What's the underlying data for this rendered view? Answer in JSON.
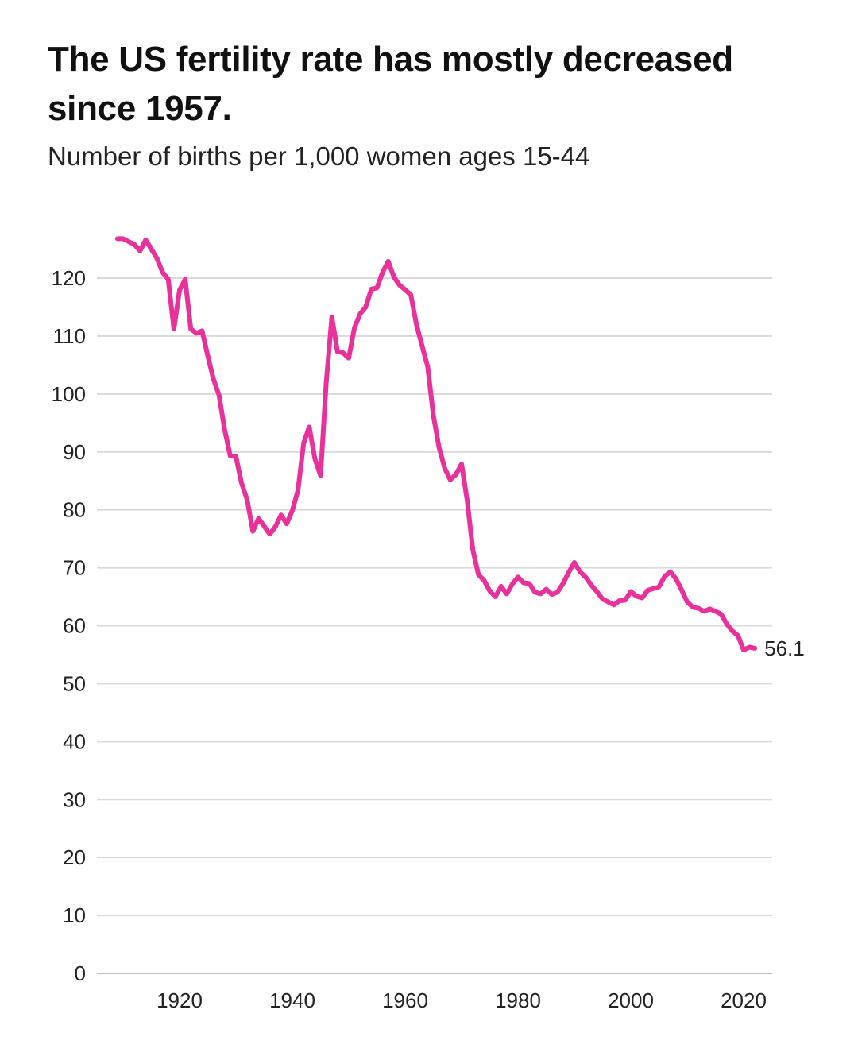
{
  "title": "The US fertility rate has mostly decreased since 1957.",
  "subtitle": "Number of births per 1,000 women ages 15-44",
  "colors": {
    "line": "#e8319a",
    "grid": "#d9d9d9"
  },
  "chart_data": {
    "type": "line",
    "title": "The US fertility rate has mostly decreased since 1957.",
    "subtitle": "Number of births per 1,000 women ages 15-44",
    "xlabel": "",
    "ylabel": "",
    "xlim": [
      1906,
      2023
    ],
    "ylim": [
      0,
      125
    ],
    "x_ticks": [
      1920,
      1940,
      1960,
      1980,
      2000,
      2020
    ],
    "y_ticks": [
      0,
      10,
      20,
      30,
      40,
      50,
      60,
      70,
      80,
      90,
      100,
      110,
      120
    ],
    "grid": true,
    "end_label": "56.1",
    "series": [
      {
        "x": [
          1909,
          1910,
          1911,
          1912,
          1913,
          1914,
          1915,
          1916,
          1917,
          1918,
          1919,
          1920,
          1921,
          1922,
          1923,
          1924,
          1925,
          1926,
          1927,
          1928,
          1929,
          1930,
          1931,
          1932,
          1933,
          1934,
          1935,
          1936,
          1937,
          1938,
          1939,
          1940,
          1941,
          1942,
          1943,
          1944,
          1945,
          1946,
          1947,
          1948,
          1949,
          1950,
          1951,
          1952,
          1953,
          1954,
          1955,
          1956,
          1957,
          1958,
          1959,
          1960,
          1961,
          1962,
          1963,
          1964,
          1965,
          1966,
          1967,
          1968,
          1969,
          1970,
          1971,
          1972,
          1973,
          1974,
          1975,
          1976,
          1977,
          1978,
          1979,
          1980,
          1981,
          1982,
          1983,
          1984,
          1985,
          1986,
          1987,
          1988,
          1989,
          1990,
          1991,
          1992,
          1993,
          1994,
          1995,
          1996,
          1997,
          1998,
          1999,
          2000,
          2001,
          2002,
          2003,
          2004,
          2005,
          2006,
          2007,
          2008,
          2009,
          2010,
          2011,
          2012,
          2013,
          2014,
          2015,
          2016,
          2017,
          2018,
          2019,
          2020,
          2021,
          2022
        ],
        "values": [
          126.8,
          126.8,
          126.3,
          125.8,
          124.7,
          126.6,
          125.0,
          123.4,
          121.0,
          119.8,
          111.2,
          117.9,
          119.8,
          111.2,
          110.5,
          110.9,
          106.6,
          102.6,
          99.8,
          93.8,
          89.3,
          89.2,
          84.6,
          81.7,
          76.3,
          78.5,
          77.2,
          75.8,
          77.1,
          79.1,
          77.6,
          79.9,
          83.4,
          91.5,
          94.3,
          88.8,
          85.9,
          101.9,
          113.3,
          107.3,
          107.1,
          106.2,
          111.4,
          113.8,
          115.0,
          118.1,
          118.3,
          121.0,
          122.9,
          120.2,
          118.8,
          118.0,
          117.1,
          112.0,
          108.3,
          104.7,
          96.3,
          90.8,
          87.2,
          85.2,
          86.1,
          87.9,
          81.6,
          73.1,
          68.8,
          67.8,
          66.0,
          65.0,
          66.8,
          65.5,
          67.2,
          68.4,
          67.4,
          67.3,
          65.8,
          65.5,
          66.3,
          65.4,
          65.8,
          67.3,
          69.2,
          70.9,
          69.3,
          68.4,
          67.0,
          65.9,
          64.6,
          64.1,
          63.6,
          64.3,
          64.4,
          65.9,
          65.1,
          64.8,
          66.1,
          66.4,
          66.7,
          68.5,
          69.3,
          68.1,
          66.2,
          64.1,
          63.2,
          63.0,
          62.5,
          62.9,
          62.5,
          62.0,
          60.3,
          59.1,
          58.3,
          55.8,
          56.3,
          56.1
        ]
      }
    ]
  }
}
